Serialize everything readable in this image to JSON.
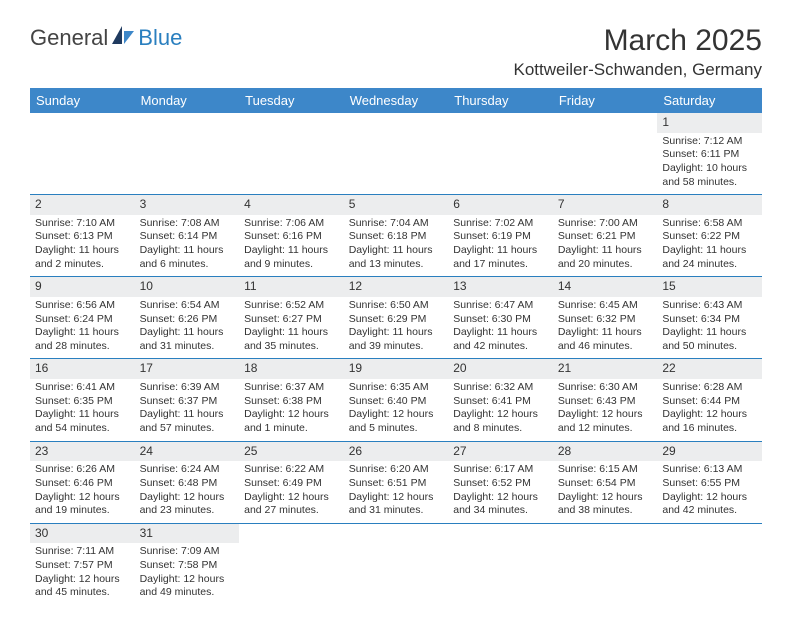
{
  "logo": {
    "text1": "General",
    "text2": "Blue"
  },
  "title": "March 2025",
  "location": "Kottweiler-Schwanden, Germany",
  "colors": {
    "header_bg": "#3d87c9",
    "header_fg": "#ffffff",
    "rule": "#2a7fbf",
    "daynum_bg": "#ecedee",
    "page_bg": "#ffffff",
    "text": "#333333"
  },
  "font": {
    "family": "Arial",
    "title_size": 30,
    "location_size": 17,
    "th_size": 13,
    "cell_size": 10.5
  },
  "day_headers": [
    "Sunday",
    "Monday",
    "Tuesday",
    "Wednesday",
    "Thursday",
    "Friday",
    "Saturday"
  ],
  "weeks": [
    [
      {
        "n": "",
        "lines": []
      },
      {
        "n": "",
        "lines": []
      },
      {
        "n": "",
        "lines": []
      },
      {
        "n": "",
        "lines": []
      },
      {
        "n": "",
        "lines": []
      },
      {
        "n": "",
        "lines": []
      },
      {
        "n": "1",
        "lines": [
          "Sunrise: 7:12 AM",
          "Sunset: 6:11 PM",
          "Daylight: 10 hours and 58 minutes."
        ]
      }
    ],
    [
      {
        "n": "2",
        "lines": [
          "Sunrise: 7:10 AM",
          "Sunset: 6:13 PM",
          "Daylight: 11 hours and 2 minutes."
        ]
      },
      {
        "n": "3",
        "lines": [
          "Sunrise: 7:08 AM",
          "Sunset: 6:14 PM",
          "Daylight: 11 hours and 6 minutes."
        ]
      },
      {
        "n": "4",
        "lines": [
          "Sunrise: 7:06 AM",
          "Sunset: 6:16 PM",
          "Daylight: 11 hours and 9 minutes."
        ]
      },
      {
        "n": "5",
        "lines": [
          "Sunrise: 7:04 AM",
          "Sunset: 6:18 PM",
          "Daylight: 11 hours and 13 minutes."
        ]
      },
      {
        "n": "6",
        "lines": [
          "Sunrise: 7:02 AM",
          "Sunset: 6:19 PM",
          "Daylight: 11 hours and 17 minutes."
        ]
      },
      {
        "n": "7",
        "lines": [
          "Sunrise: 7:00 AM",
          "Sunset: 6:21 PM",
          "Daylight: 11 hours and 20 minutes."
        ]
      },
      {
        "n": "8",
        "lines": [
          "Sunrise: 6:58 AM",
          "Sunset: 6:22 PM",
          "Daylight: 11 hours and 24 minutes."
        ]
      }
    ],
    [
      {
        "n": "9",
        "lines": [
          "Sunrise: 6:56 AM",
          "Sunset: 6:24 PM",
          "Daylight: 11 hours and 28 minutes."
        ]
      },
      {
        "n": "10",
        "lines": [
          "Sunrise: 6:54 AM",
          "Sunset: 6:26 PM",
          "Daylight: 11 hours and 31 minutes."
        ]
      },
      {
        "n": "11",
        "lines": [
          "Sunrise: 6:52 AM",
          "Sunset: 6:27 PM",
          "Daylight: 11 hours and 35 minutes."
        ]
      },
      {
        "n": "12",
        "lines": [
          "Sunrise: 6:50 AM",
          "Sunset: 6:29 PM",
          "Daylight: 11 hours and 39 minutes."
        ]
      },
      {
        "n": "13",
        "lines": [
          "Sunrise: 6:47 AM",
          "Sunset: 6:30 PM",
          "Daylight: 11 hours and 42 minutes."
        ]
      },
      {
        "n": "14",
        "lines": [
          "Sunrise: 6:45 AM",
          "Sunset: 6:32 PM",
          "Daylight: 11 hours and 46 minutes."
        ]
      },
      {
        "n": "15",
        "lines": [
          "Sunrise: 6:43 AM",
          "Sunset: 6:34 PM",
          "Daylight: 11 hours and 50 minutes."
        ]
      }
    ],
    [
      {
        "n": "16",
        "lines": [
          "Sunrise: 6:41 AM",
          "Sunset: 6:35 PM",
          "Daylight: 11 hours and 54 minutes."
        ]
      },
      {
        "n": "17",
        "lines": [
          "Sunrise: 6:39 AM",
          "Sunset: 6:37 PM",
          "Daylight: 11 hours and 57 minutes."
        ]
      },
      {
        "n": "18",
        "lines": [
          "Sunrise: 6:37 AM",
          "Sunset: 6:38 PM",
          "Daylight: 12 hours and 1 minute."
        ]
      },
      {
        "n": "19",
        "lines": [
          "Sunrise: 6:35 AM",
          "Sunset: 6:40 PM",
          "Daylight: 12 hours and 5 minutes."
        ]
      },
      {
        "n": "20",
        "lines": [
          "Sunrise: 6:32 AM",
          "Sunset: 6:41 PM",
          "Daylight: 12 hours and 8 minutes."
        ]
      },
      {
        "n": "21",
        "lines": [
          "Sunrise: 6:30 AM",
          "Sunset: 6:43 PM",
          "Daylight: 12 hours and 12 minutes."
        ]
      },
      {
        "n": "22",
        "lines": [
          "Sunrise: 6:28 AM",
          "Sunset: 6:44 PM",
          "Daylight: 12 hours and 16 minutes."
        ]
      }
    ],
    [
      {
        "n": "23",
        "lines": [
          "Sunrise: 6:26 AM",
          "Sunset: 6:46 PM",
          "Daylight: 12 hours and 19 minutes."
        ]
      },
      {
        "n": "24",
        "lines": [
          "Sunrise: 6:24 AM",
          "Sunset: 6:48 PM",
          "Daylight: 12 hours and 23 minutes."
        ]
      },
      {
        "n": "25",
        "lines": [
          "Sunrise: 6:22 AM",
          "Sunset: 6:49 PM",
          "Daylight: 12 hours and 27 minutes."
        ]
      },
      {
        "n": "26",
        "lines": [
          "Sunrise: 6:20 AM",
          "Sunset: 6:51 PM",
          "Daylight: 12 hours and 31 minutes."
        ]
      },
      {
        "n": "27",
        "lines": [
          "Sunrise: 6:17 AM",
          "Sunset: 6:52 PM",
          "Daylight: 12 hours and 34 minutes."
        ]
      },
      {
        "n": "28",
        "lines": [
          "Sunrise: 6:15 AM",
          "Sunset: 6:54 PM",
          "Daylight: 12 hours and 38 minutes."
        ]
      },
      {
        "n": "29",
        "lines": [
          "Sunrise: 6:13 AM",
          "Sunset: 6:55 PM",
          "Daylight: 12 hours and 42 minutes."
        ]
      }
    ],
    [
      {
        "n": "30",
        "lines": [
          "Sunrise: 7:11 AM",
          "Sunset: 7:57 PM",
          "Daylight: 12 hours and 45 minutes."
        ]
      },
      {
        "n": "31",
        "lines": [
          "Sunrise: 7:09 AM",
          "Sunset: 7:58 PM",
          "Daylight: 12 hours and 49 minutes."
        ]
      },
      {
        "n": "",
        "lines": []
      },
      {
        "n": "",
        "lines": []
      },
      {
        "n": "",
        "lines": []
      },
      {
        "n": "",
        "lines": []
      },
      {
        "n": "",
        "lines": []
      }
    ]
  ]
}
